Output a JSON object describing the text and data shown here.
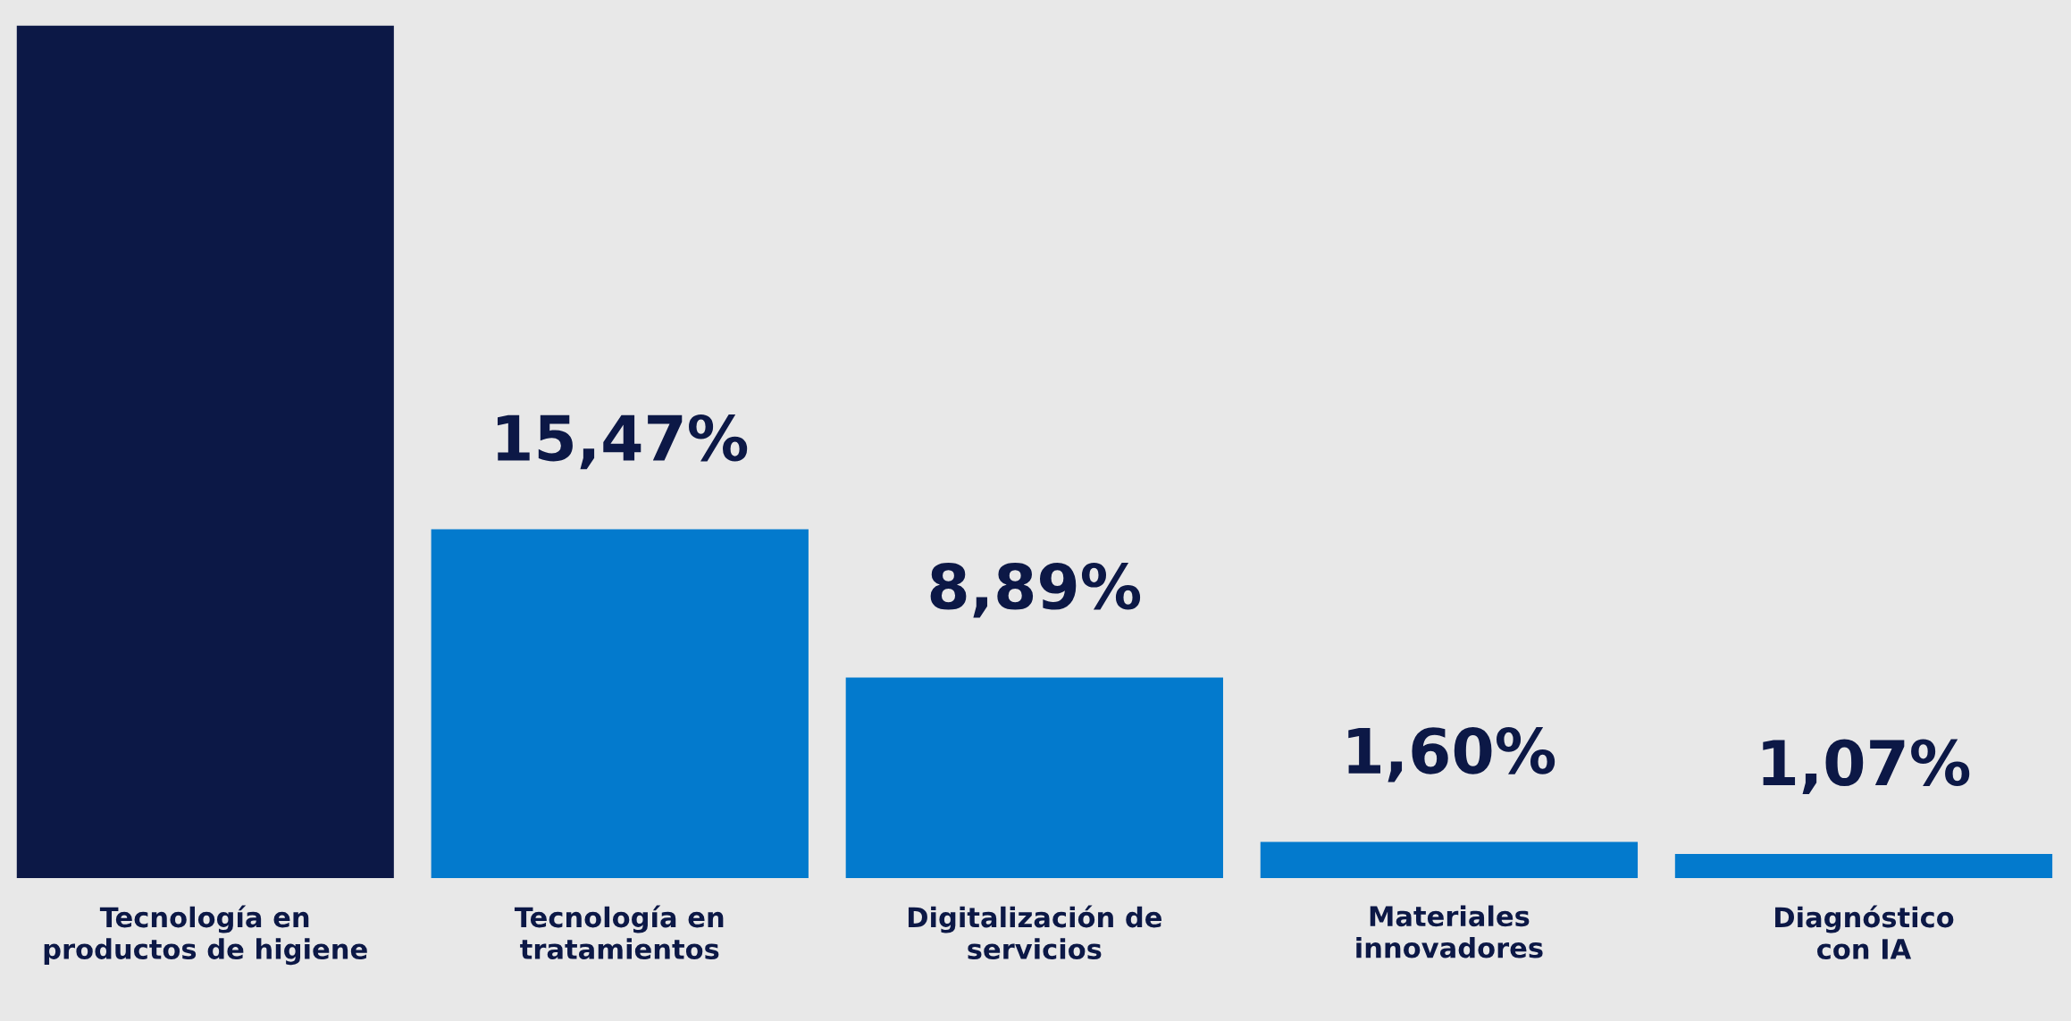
{
  "chart_data": {
    "type": "bar",
    "categories": [
      "Tecnología en\nproductos de higiene",
      "Tecnología en\ntratamientos",
      "Digitalización de\nservicios",
      "Materiales\ninnovadores",
      "Diagnóstico\ncon IA"
    ],
    "values": [
      37.8,
      15.47,
      8.89,
      1.6,
      1.07
    ],
    "colors": [
      "#0c1846",
      "#037acd",
      "#037acd",
      "#037acd",
      "#037acd"
    ],
    "value_labels": [
      null,
      "15,47%",
      "8,89%",
      "1,60%",
      "1,07%"
    ]
  }
}
